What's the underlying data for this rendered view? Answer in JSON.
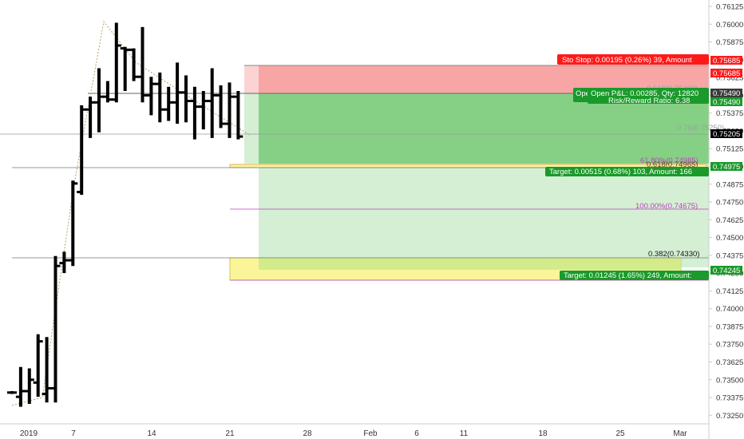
{
  "chart_data": {
    "type": "ohlc",
    "ylim": [
      0.7319,
      0.7617
    ],
    "yticks": [
      "0.76125",
      "0.76000",
      "0.75875",
      "0.75750",
      "0.75625",
      "0.75500",
      "0.75375",
      "0.75250",
      "0.75125",
      "0.75000",
      "0.74875",
      "0.74750",
      "0.74625",
      "0.74500",
      "0.74375",
      "0.74250",
      "0.74125",
      "0.74000",
      "0.73875",
      "0.73750",
      "0.73625",
      "0.73500",
      "0.73375",
      "0.73250"
    ],
    "xticks": [
      "2019",
      "7",
      "14",
      "21",
      "28",
      "Feb",
      "6",
      "11",
      "18",
      "25",
      "Mar"
    ],
    "bars": [
      {
        "o": 0.7341,
        "h": 0.7342,
        "l": 0.734,
        "c": 0.7341
      },
      {
        "o": 0.7338,
        "h": 0.7359,
        "l": 0.7331,
        "c": 0.7342
      },
      {
        "o": 0.7342,
        "h": 0.7358,
        "l": 0.7333,
        "c": 0.735
      },
      {
        "o": 0.7348,
        "h": 0.7382,
        "l": 0.7338,
        "c": 0.7377
      },
      {
        "o": 0.734,
        "h": 0.738,
        "l": 0.7334,
        "c": 0.7344
      },
      {
        "o": 0.7344,
        "h": 0.7437,
        "l": 0.7334,
        "c": 0.743
      },
      {
        "o": 0.7432,
        "h": 0.744,
        "l": 0.7425,
        "c": 0.7434
      },
      {
        "o": 0.7434,
        "h": 0.749,
        "l": 0.743,
        "c": 0.7488
      },
      {
        "o": 0.7482,
        "h": 0.7543,
        "l": 0.748,
        "c": 0.754
      },
      {
        "o": 0.754,
        "h": 0.7549,
        "l": 0.752,
        "c": 0.7545
      },
      {
        "o": 0.7545,
        "h": 0.7569,
        "l": 0.7524,
        "c": 0.7549
      },
      {
        "o": 0.7549,
        "h": 0.756,
        "l": 0.7545,
        "c": 0.7547
      },
      {
        "o": 0.7547,
        "h": 0.7601,
        "l": 0.7545,
        "c": 0.7585
      },
      {
        "o": 0.7583,
        "h": 0.7584,
        "l": 0.7553,
        "c": 0.7582
      },
      {
        "o": 0.7582,
        "h": 0.7583,
        "l": 0.756,
        "c": 0.7563
      },
      {
        "o": 0.7563,
        "h": 0.7598,
        "l": 0.7545,
        "c": 0.755
      },
      {
        "o": 0.755,
        "h": 0.7563,
        "l": 0.7536,
        "c": 0.7558
      },
      {
        "o": 0.7558,
        "h": 0.7566,
        "l": 0.7531,
        "c": 0.754
      },
      {
        "o": 0.754,
        "h": 0.7556,
        "l": 0.7532,
        "c": 0.7545
      },
      {
        "o": 0.7545,
        "h": 0.7573,
        "l": 0.753,
        "c": 0.7552
      },
      {
        "o": 0.7552,
        "h": 0.7564,
        "l": 0.7531,
        "c": 0.7546
      },
      {
        "o": 0.7546,
        "h": 0.7556,
        "l": 0.7519,
        "c": 0.7542
      },
      {
        "o": 0.7542,
        "h": 0.7553,
        "l": 0.7526,
        "c": 0.7546
      },
      {
        "o": 0.7546,
        "h": 0.7569,
        "l": 0.752,
        "c": 0.755
      },
      {
        "o": 0.755,
        "h": 0.7557,
        "l": 0.7527,
        "c": 0.753
      },
      {
        "o": 0.753,
        "h": 0.7559,
        "l": 0.752,
        "c": 0.7549
      },
      {
        "o": 0.7549,
        "h": 0.7553,
        "l": 0.7519,
        "c": 0.7521
      }
    ],
    "last_price": "0.75205",
    "levels": [
      {
        "label": "0.75685",
        "color": "#ff1a1a"
      },
      {
        "label": "0.75490",
        "color": "#1a9a2a"
      },
      {
        "label": "0.74975",
        "color": "#1a9a2a"
      },
      {
        "label": "0.74245",
        "color": "#1a9a2a"
      }
    ],
    "annotations": {
      "stop": "Sto Stop: 0.00195 (0.26%) 39, Amount",
      "stop_price": "0.75685",
      "pnl_line1": "Open P&L: 0.00285, Qty: 12820",
      "pnl_line2": "Risk/Reward Ratio: 6.38",
      "pnl_prefix": "Ope",
      "pnl_price": "0.75490",
      "target1": "Target: 0.00515 (0.68%) 103, Amount: 166",
      "target1_price": "0.74975",
      "target2": "Target: 0.01245 (1.65%) 249, Amount:",
      "target2_price": "0.74245",
      "fib_618": "61.80%(0.74985)",
      "fib_618b": "0.618(0.74965)",
      "fib_100": "100.00%(0.74675)",
      "fib_382": "0.382(0.74330)",
      "faint_top": "0.618(0.75490)",
      "faint_hi": "0.76(0.75250)"
    },
    "colors": {
      "stop_zone": "#f7a5a5",
      "stop_zone_pale": "#fbd3d3",
      "profit_dark": "#86d086",
      "profit_mid": "#a6dca6",
      "profit_light": "#d4efd4",
      "yellow": "#fbf59a",
      "fib_magenta": "#c040c0",
      "bars": "#000000"
    }
  }
}
